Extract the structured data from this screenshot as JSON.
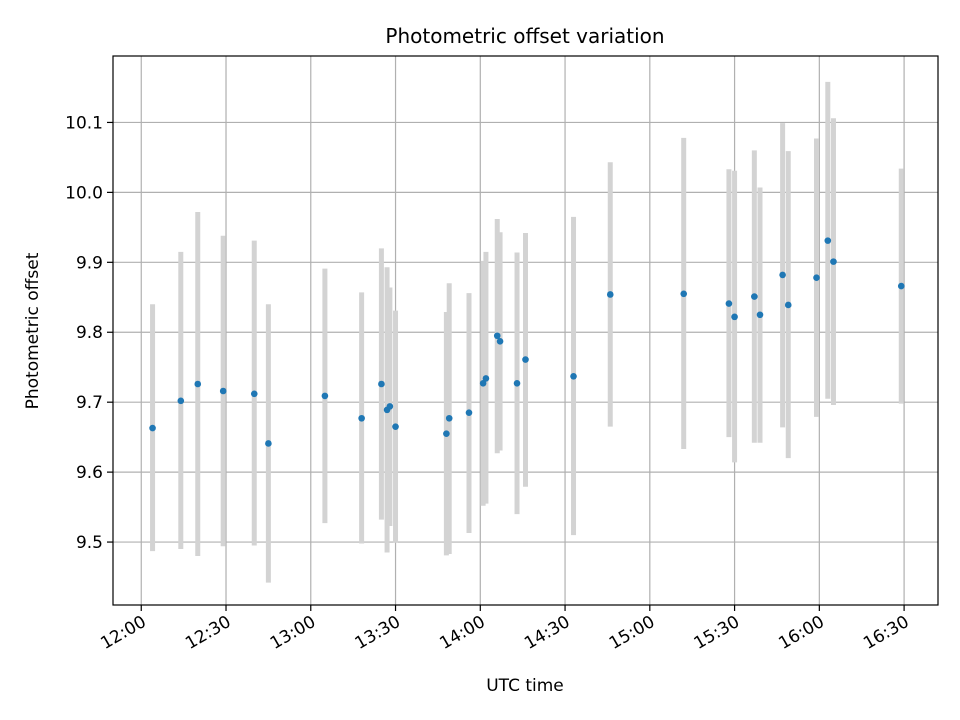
{
  "chart_data": {
    "type": "scatter",
    "title": "Photometric offset variation",
    "xlabel": "UTC time",
    "ylabel": "Photometric offset",
    "xlim": [
      "11:50",
      "16:42"
    ],
    "ylim": [
      9.41,
      10.195
    ],
    "x_ticks": [
      "12:00",
      "12:30",
      "13:00",
      "13:30",
      "14:00",
      "14:30",
      "15:00",
      "15:30",
      "16:00",
      "16:30"
    ],
    "y_ticks": [
      9.5,
      9.6,
      9.7,
      9.8,
      9.9,
      10.0,
      10.1
    ],
    "grid": true,
    "colors": {
      "points": "#1f77b4",
      "errorbars": "#d3d3d3",
      "grid": "#b0b0b0"
    },
    "series": [
      {
        "points": [
          {
            "x": "12:04",
            "y": 9.663,
            "lo": 9.487,
            "hi": 9.84
          },
          {
            "x": "12:14",
            "y": 9.702,
            "lo": 9.49,
            "hi": 9.915
          },
          {
            "x": "12:20",
            "y": 9.726,
            "lo": 9.48,
            "hi": 9.972
          },
          {
            "x": "12:29",
            "y": 9.716,
            "lo": 9.494,
            "hi": 9.938
          },
          {
            "x": "12:40",
            "y": 9.712,
            "lo": 9.495,
            "hi": 9.931
          },
          {
            "x": "12:45",
            "y": 9.641,
            "lo": 9.442,
            "hi": 9.84
          },
          {
            "x": "13:05",
            "y": 9.709,
            "lo": 9.527,
            "hi": 9.891
          },
          {
            "x": "13:18",
            "y": 9.677,
            "lo": 9.498,
            "hi": 9.857
          },
          {
            "x": "13:25",
            "y": 9.726,
            "lo": 9.532,
            "hi": 9.92
          },
          {
            "x": "13:27",
            "y": 9.689,
            "lo": 9.485,
            "hi": 9.893
          },
          {
            "x": "13:28",
            "y": 9.694,
            "lo": 9.523,
            "hi": 9.864
          },
          {
            "x": "13:30",
            "y": 9.665,
            "lo": 9.499,
            "hi": 9.831
          },
          {
            "x": "13:48",
            "y": 9.655,
            "lo": 9.481,
            "hi": 9.829
          },
          {
            "x": "13:49",
            "y": 9.677,
            "lo": 9.483,
            "hi": 9.87
          },
          {
            "x": "13:56",
            "y": 9.685,
            "lo": 9.513,
            "hi": 9.856
          },
          {
            "x": "14:01",
            "y": 9.727,
            "lo": 9.552,
            "hi": 9.902
          },
          {
            "x": "14:02",
            "y": 9.734,
            "lo": 9.555,
            "hi": 9.915
          },
          {
            "x": "14:06",
            "y": 9.795,
            "lo": 9.627,
            "hi": 9.962
          },
          {
            "x": "14:07",
            "y": 9.787,
            "lo": 9.631,
            "hi": 9.943
          },
          {
            "x": "14:13",
            "y": 9.727,
            "lo": 9.54,
            "hi": 9.914
          },
          {
            "x": "14:16",
            "y": 9.761,
            "lo": 9.579,
            "hi": 9.942
          },
          {
            "x": "14:33",
            "y": 9.737,
            "lo": 9.51,
            "hi": 9.965
          },
          {
            "x": "14:46",
            "y": 9.854,
            "lo": 9.665,
            "hi": 10.043
          },
          {
            "x": "15:12",
            "y": 9.855,
            "lo": 9.633,
            "hi": 10.078
          },
          {
            "x": "15:28",
            "y": 9.841,
            "lo": 9.65,
            "hi": 10.033
          },
          {
            "x": "15:30",
            "y": 9.822,
            "lo": 9.614,
            "hi": 10.031
          },
          {
            "x": "15:37",
            "y": 9.851,
            "lo": 9.642,
            "hi": 10.06
          },
          {
            "x": "15:39",
            "y": 9.825,
            "lo": 9.642,
            "hi": 10.007
          },
          {
            "x": "15:47",
            "y": 9.882,
            "lo": 9.664,
            "hi": 10.099
          },
          {
            "x": "15:49",
            "y": 9.839,
            "lo": 9.62,
            "hi": 10.059
          },
          {
            "x": "15:59",
            "y": 9.878,
            "lo": 9.679,
            "hi": 10.077
          },
          {
            "x": "16:03",
            "y": 9.931,
            "lo": 9.705,
            "hi": 10.158
          },
          {
            "x": "16:05",
            "y": 9.901,
            "lo": 9.696,
            "hi": 10.106
          },
          {
            "x": "16:29",
            "y": 9.866,
            "lo": 9.698,
            "hi": 10.034
          }
        ]
      }
    ]
  }
}
